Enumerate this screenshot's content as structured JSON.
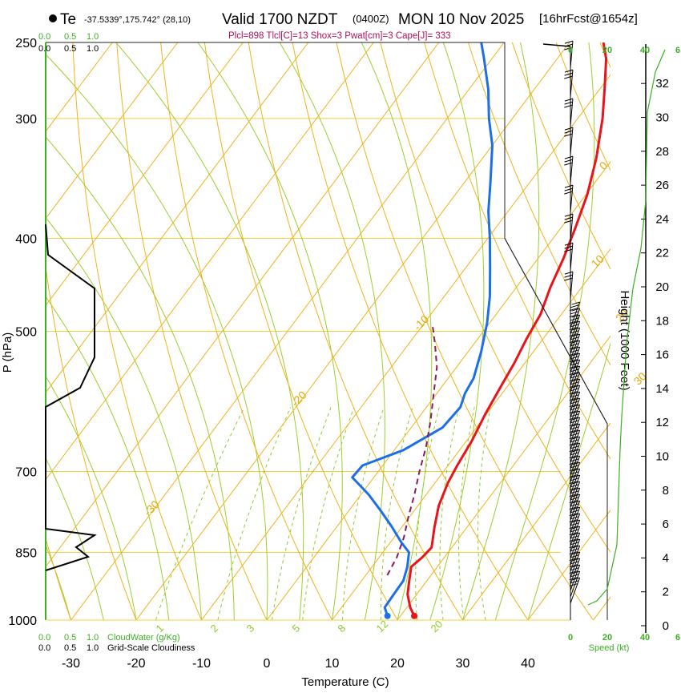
{
  "header": {
    "location": "Te",
    "coords": "-37.5339°,175.742° (28,10)",
    "valid": "Valid 1700 NZDT",
    "utc": "(0400Z)",
    "date": "MON 10 Nov 2025",
    "forecast": "[16hrFcst@1654z]",
    "indices": "Plcl=898 Tlcl[C]=13 Shox=3 Pwat[cm]=3 Cape[J]= 333"
  },
  "colors": {
    "temperature": "#e8141a",
    "dewpoint": "#1c6fe6",
    "parcel": "#8b1a5e",
    "isotherm": "#f2b21c",
    "dry_adiabat": "#f2b21c",
    "moist_adiabat": "#9ccf2e",
    "mixing_ratio": "#8ccc2a",
    "isobar": "#f0d040",
    "green_text": "#3cb021"
  },
  "chart_data": {
    "type": "line",
    "title": "Skew-T log-P sounding",
    "xlabel": "Temperature (C)",
    "ylabel": "P (hPa)",
    "y2label": "Height (1000 Feet)",
    "xlim": [
      -35,
      47
    ],
    "ylim": [
      1000,
      250
    ],
    "x_ticks": [
      "-30",
      "-20",
      "-10",
      "0",
      "10",
      "20",
      "30",
      "40"
    ],
    "x_tick_values": [
      -30,
      -20,
      -10,
      0,
      10,
      20,
      30,
      40
    ],
    "p_ticks": [
      "250",
      "300",
      "400",
      "500",
      "700",
      "850",
      "1000"
    ],
    "p_tick_values": [
      250,
      300,
      400,
      500,
      700,
      850,
      1000
    ],
    "height_ticks": [
      "0",
      "2",
      "4",
      "6",
      "8",
      "10",
      "12",
      "14",
      "16",
      "18",
      "20",
      "22",
      "24",
      "26",
      "28",
      "30",
      "32"
    ],
    "height_tick_values": [
      0,
      2,
      4,
      6,
      8,
      10,
      12,
      14,
      16,
      18,
      20,
      22,
      24,
      26,
      28,
      30,
      32
    ],
    "isotherm_labels": [
      "-30",
      "-20",
      "-10",
      "0",
      "10",
      "20",
      "30"
    ],
    "isotherm_label_values": [
      -30,
      -20,
      -10,
      0,
      10,
      20,
      30
    ],
    "mixing_ratio_labels": [
      "1",
      "2",
      "3",
      "5",
      "8",
      "12",
      "20"
    ],
    "mixing_ratio_values": [
      1,
      2,
      3,
      5,
      8,
      12,
      20
    ],
    "cloud_scale_top_green": [
      "0.0",
      "0.5",
      "1.0"
    ],
    "cloud_scale_top_black": [
      "0.0",
      "0.5",
      "1.0"
    ],
    "cloud_scale_bottom_green": [
      "0.0",
      "0.5",
      "1.0"
    ],
    "cloud_scale_bottom_black": [
      "0.0",
      "0.5",
      "1.0"
    ],
    "cloud_water_label": "CloudWater (g/Kg)",
    "cloudiness_label": "Grid-Scale Cloudiness",
    "speed_ticks_top": [
      "0",
      "20",
      "40",
      "6"
    ],
    "speed_ticks_bottom": [
      "0",
      "20",
      "40",
      "6"
    ],
    "speed_label": "Speed (kt)",
    "series": [
      {
        "name": "Temperature",
        "points": [
          [
            22.1,
            990
          ],
          [
            20.5,
            970
          ],
          [
            18.6,
            940
          ],
          [
            17.3,
            910
          ],
          [
            16.0,
            880
          ],
          [
            16.6,
            860
          ],
          [
            16.9,
            840
          ],
          [
            15.0,
            800
          ],
          [
            13.2,
            760
          ],
          [
            12.0,
            720
          ],
          [
            11.4,
            690
          ],
          [
            10.8,
            650
          ],
          [
            9.8,
            610
          ],
          [
            9.0,
            570
          ],
          [
            8.4,
            540
          ],
          [
            7.5,
            510
          ],
          [
            6.8,
            480
          ],
          [
            5.2,
            450
          ],
          [
            3.9,
            420
          ],
          [
            2.2,
            390
          ],
          [
            0.2,
            360
          ],
          [
            -2.6,
            330
          ],
          [
            -6.2,
            300
          ],
          [
            -9.2,
            280
          ],
          [
            -12.5,
            260
          ],
          [
            -14.8,
            250
          ]
        ]
      },
      {
        "name": "Dewpoint",
        "points": [
          [
            18.0,
            990
          ],
          [
            16.6,
            970
          ],
          [
            16.5,
            945
          ],
          [
            16.4,
            910
          ],
          [
            15.4,
            880
          ],
          [
            14.0,
            850
          ],
          [
            11.7,
            830
          ],
          [
            8.5,
            800
          ],
          [
            5.0,
            770
          ],
          [
            1.2,
            740
          ],
          [
            -3.3,
            710
          ],
          [
            -3.1,
            690
          ],
          [
            1.4,
            665
          ],
          [
            4.8,
            630
          ],
          [
            5.2,
            600
          ],
          [
            4.3,
            580
          ],
          [
            3.9,
            560
          ],
          [
            2.0,
            525
          ],
          [
            -0.4,
            490
          ],
          [
            -3.0,
            460
          ],
          [
            -6.2,
            430
          ],
          [
            -9.7,
            400
          ],
          [
            -13.0,
            375
          ],
          [
            -16.0,
            350
          ],
          [
            -20.0,
            320
          ],
          [
            -23.6,
            300
          ],
          [
            -27.0,
            280
          ],
          [
            -31.2,
            260
          ],
          [
            -33.5,
            250
          ]
        ]
      },
      {
        "name": "Parcel",
        "points": [
          [
            13.3,
            898
          ],
          [
            12.7,
            860
          ],
          [
            11.5,
            820
          ],
          [
            9.8,
            780
          ],
          [
            8.2,
            740
          ],
          [
            6.3,
            700
          ],
          [
            4.5,
            660
          ],
          [
            2.2,
            620
          ],
          [
            -0.5,
            580
          ],
          [
            -3.0,
            545
          ],
          [
            -6.0,
            515
          ],
          [
            -8.8,
            490
          ]
        ]
      }
    ],
    "surface_temperature_point": [
      22.1,
      990
    ],
    "surface_dewpoint_point": [
      18.0,
      990
    ]
  }
}
